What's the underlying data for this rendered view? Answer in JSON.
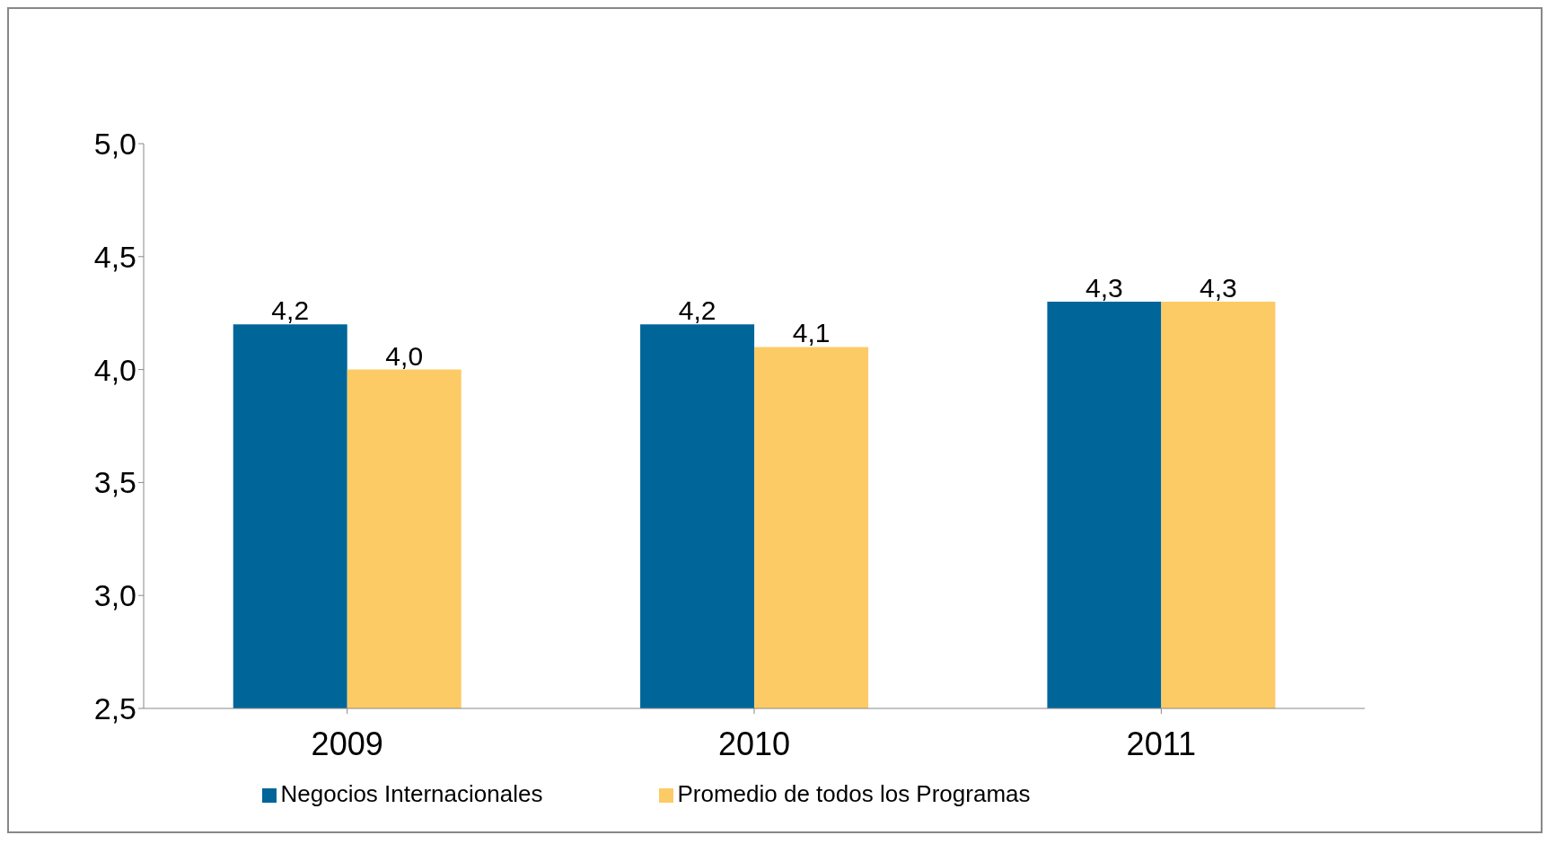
{
  "chart_data": {
    "type": "bar",
    "categories": [
      "2009",
      "2010",
      "2011"
    ],
    "series": [
      {
        "name": "Negocios Internacionales",
        "color": "#006699",
        "values": [
          4.2,
          4.2,
          4.3
        ],
        "value_labels": [
          "4,2",
          "4,2",
          "4,3"
        ]
      },
      {
        "name": "Promedio de todos los Programas",
        "color": "#fdcb65",
        "values": [
          4.0,
          4.1,
          4.3
        ],
        "value_labels": [
          "4,0",
          "4,1",
          "4,3"
        ]
      }
    ],
    "ylim": [
      2.5,
      5.0
    ],
    "yticks": [
      {
        "value": 2.5,
        "label": "2,5"
      },
      {
        "value": 3.0,
        "label": "3,0"
      },
      {
        "value": 3.5,
        "label": "3,5"
      },
      {
        "value": 4.0,
        "label": "4,0"
      },
      {
        "value": 4.5,
        "label": "4,5"
      },
      {
        "value": 5.0,
        "label": "5,0"
      }
    ],
    "grid": false,
    "legend": "bottom"
  }
}
